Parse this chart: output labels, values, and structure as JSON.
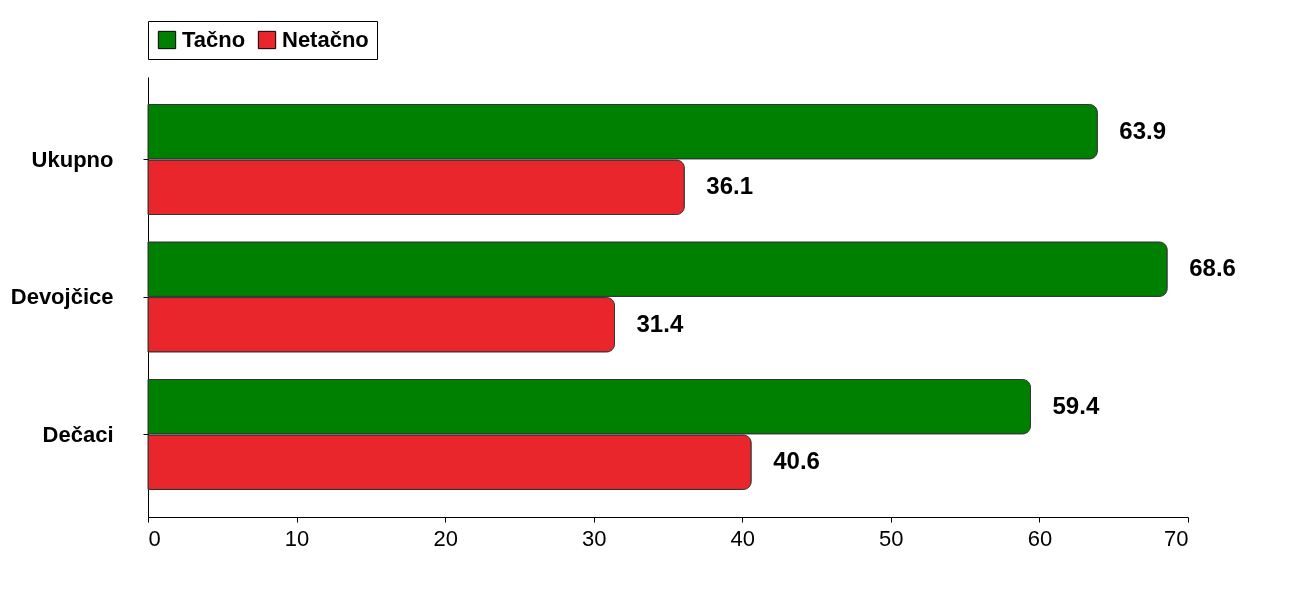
{
  "chart_data": {
    "type": "bar",
    "orientation": "horizontal",
    "categories": [
      "Ukupno",
      "Devojčice",
      "Dečaci"
    ],
    "series": [
      {
        "name": "Tačno",
        "color": "#008000",
        "values": [
          63.9,
          68.6,
          59.4
        ]
      },
      {
        "name": "Netačno",
        "color": "#e8262b",
        "values": [
          36.1,
          31.4,
          40.6
        ]
      }
    ],
    "xlim": [
      0,
      70
    ],
    "xticks": [
      0,
      10,
      20,
      30,
      40,
      50,
      60,
      70
    ],
    "legend": "top",
    "data_labels": true,
    "grid": false
  }
}
